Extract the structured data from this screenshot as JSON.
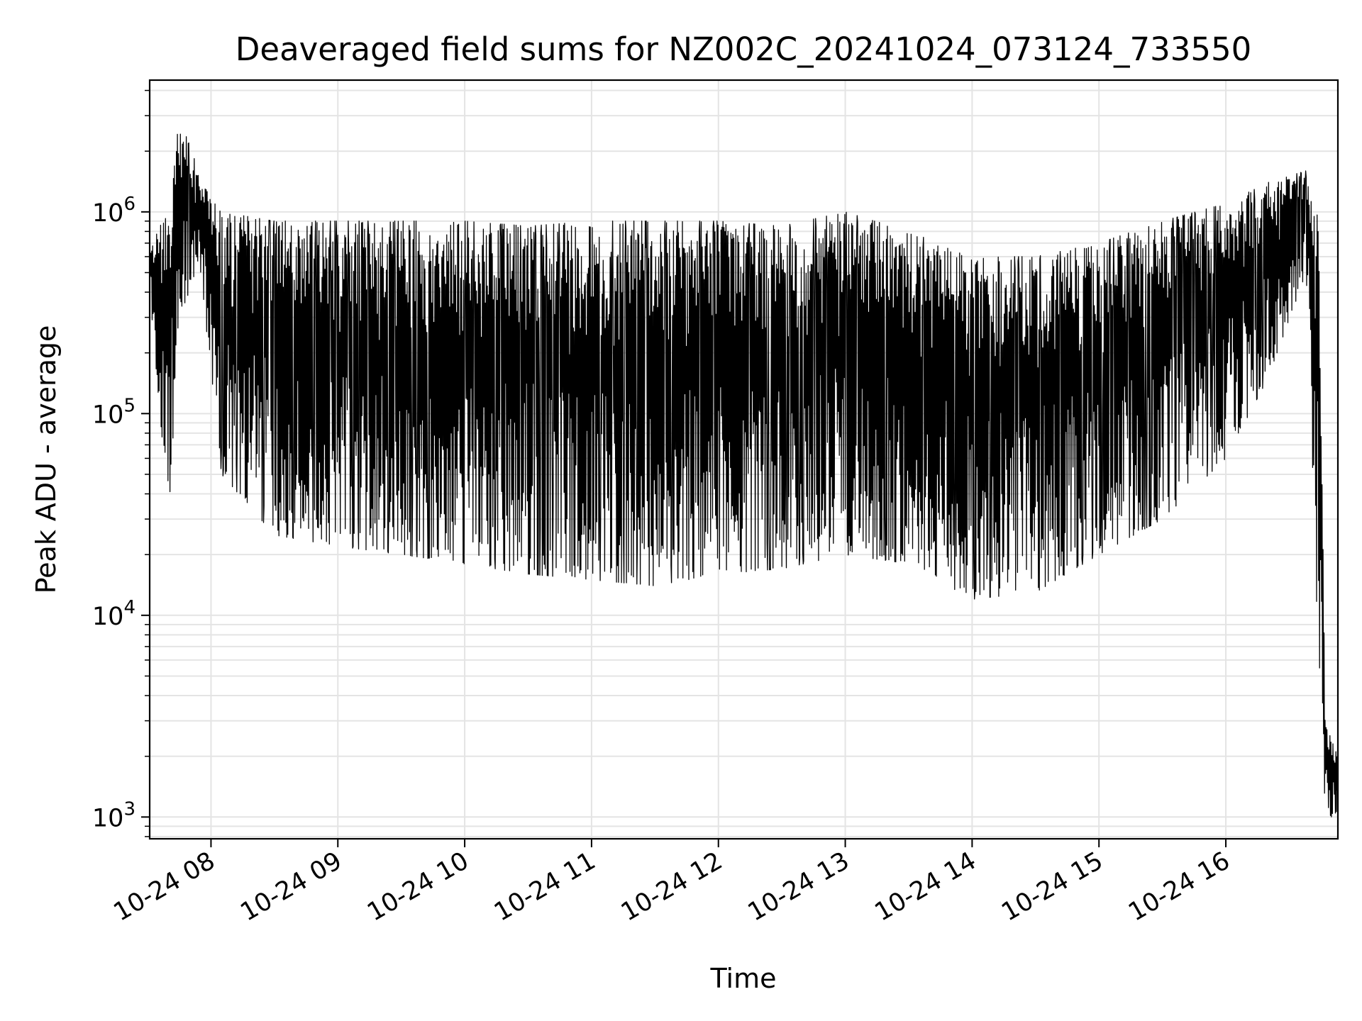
{
  "chart_data": {
    "type": "line",
    "title": "Deaveraged field sums for NZ002C_20241024_073124_733550",
    "xlabel": "Time",
    "ylabel": "Peak ADU - average",
    "yscale": "log",
    "ylim": [
      780,
      4500000
    ],
    "xlim": [
      "2024-10-24 07:31",
      "2024-10-24 16:53"
    ],
    "grid": true,
    "line_color": "#000000",
    "x_ticks": [
      "10-24 08",
      "10-24 09",
      "10-24 10",
      "10-24 11",
      "10-24 12",
      "10-24 13",
      "10-24 14",
      "10-24 15",
      "10-24 16"
    ],
    "y_ticks": [
      {
        "base": "10",
        "exp": "3",
        "value": 1000
      },
      {
        "base": "10",
        "exp": "4",
        "value": 10000
      },
      {
        "base": "10",
        "exp": "5",
        "value": 100000
      },
      {
        "base": "10",
        "exp": "6",
        "value": 1000000
      }
    ],
    "series": [
      {
        "x": [
          "2024-10-24 07:31",
          "2024-10-24 07:40",
          "2024-10-24 07:45",
          "2024-10-24 07:55",
          "2024-10-24 08:05",
          "2024-10-24 08:30",
          "2024-10-24 09:00",
          "2024-10-24 09:30",
          "2024-10-24 10:00",
          "2024-10-24 10:30",
          "2024-10-24 11:00",
          "2024-10-24 11:30",
          "2024-10-24 12:00",
          "2024-10-24 12:30",
          "2024-10-24 13:00",
          "2024-10-24 13:30",
          "2024-10-24 14:00",
          "2024-10-24 14:30",
          "2024-10-24 15:00",
          "2024-10-24 15:30",
          "2024-10-24 16:00",
          "2024-10-24 16:20",
          "2024-10-24 16:38",
          "2024-10-24 16:44",
          "2024-10-24 16:47",
          "2024-10-24 16:50",
          "2024-10-24 16:53"
        ],
        "upper": [
          700000,
          1000000,
          3000000,
          1500000,
          1000000,
          900000,
          900000,
          900000,
          900000,
          850000,
          900000,
          900000,
          900000,
          850000,
          1000000,
          800000,
          600000,
          600000,
          700000,
          900000,
          1100000,
          1400000,
          1600000,
          1000000,
          3000,
          2500,
          2000
        ],
        "lower": [
          400000,
          30000,
          300000,
          500000,
          50000,
          25000,
          22000,
          20000,
          18000,
          16000,
          15000,
          14000,
          16000,
          17000,
          20000,
          18000,
          12000,
          13000,
          20000,
          30000,
          60000,
          150000,
          500000,
          5000,
          1100,
          1000,
          1000
        ]
      }
    ]
  }
}
